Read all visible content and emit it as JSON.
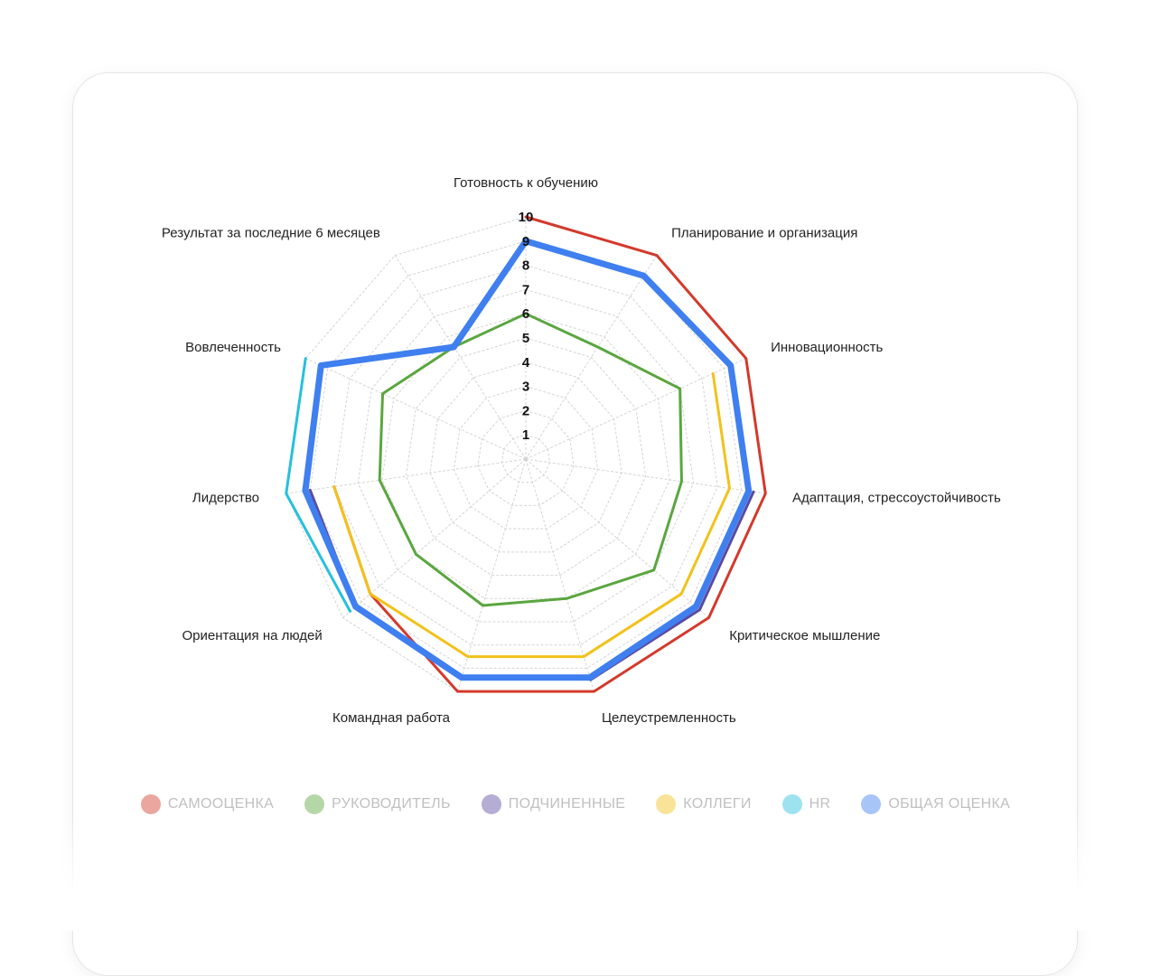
{
  "chart_data": {
    "type": "radar",
    "title": "",
    "axes": [
      "Готовность к обучению",
      "Планирование и организация",
      "Инновационность",
      "Адаптация, стрессоустойчивость",
      "Критическое мышление",
      "Целеустремленность",
      "Командная работа",
      "Ориентация на людей",
      "Лидерство",
      "Вовлеченность",
      "Результат за последние 6 месяцев"
    ],
    "scale": {
      "min": 0,
      "max": 10,
      "step": 1
    },
    "tick_labels": [
      "1",
      "2",
      "3",
      "4",
      "5",
      "6",
      "7",
      "8",
      "9",
      "10"
    ],
    "series": [
      {
        "name": "Самооценка",
        "color": "#d23a2c",
        "values": [
          10,
          10,
          10,
          10,
          10,
          10,
          10,
          8.5,
          8,
          0,
          0
        ]
      },
      {
        "name": "Руководитель",
        "color": "#5aa63f",
        "values": [
          6,
          5.5,
          7,
          6.5,
          7,
          6,
          6.3,
          6,
          6.1,
          6.5,
          5.5
        ]
      },
      {
        "name": "Подчиненные",
        "color": "#5a4aa0",
        "values": [
          0,
          0,
          0,
          9.5,
          9.5,
          9.5,
          0,
          9.3,
          9,
          0,
          0
        ]
      },
      {
        "name": "Коллеги",
        "color": "#f1c21b",
        "values": [
          0,
          0,
          8.5,
          8.5,
          8.5,
          8.5,
          8.5,
          8.5,
          8,
          0,
          0
        ]
      },
      {
        "name": "HR",
        "color": "#26c0dc",
        "values": [
          0,
          0,
          0,
          0,
          0,
          0,
          0,
          9.6,
          10,
          10,
          0
        ]
      },
      {
        "name": "Общая оценка",
        "color": "#3f7fef",
        "values": [
          9,
          9,
          9.3,
          9.3,
          9.3,
          9.4,
          9.4,
          9.3,
          9.2,
          9.3,
          5.5
        ]
      }
    ]
  },
  "legend": [
    {
      "label": "Самооценка",
      "color": "#d23a2c"
    },
    {
      "label": "Руководитель",
      "color": "#5aa63f"
    },
    {
      "label": "Подчиненные",
      "color": "#5a4aa0"
    },
    {
      "label": "Коллеги",
      "color": "#f1c21b"
    },
    {
      "label": "HR",
      "color": "#26c0dc"
    },
    {
      "label": "Общая оценка",
      "color": "#3f7fef"
    }
  ]
}
